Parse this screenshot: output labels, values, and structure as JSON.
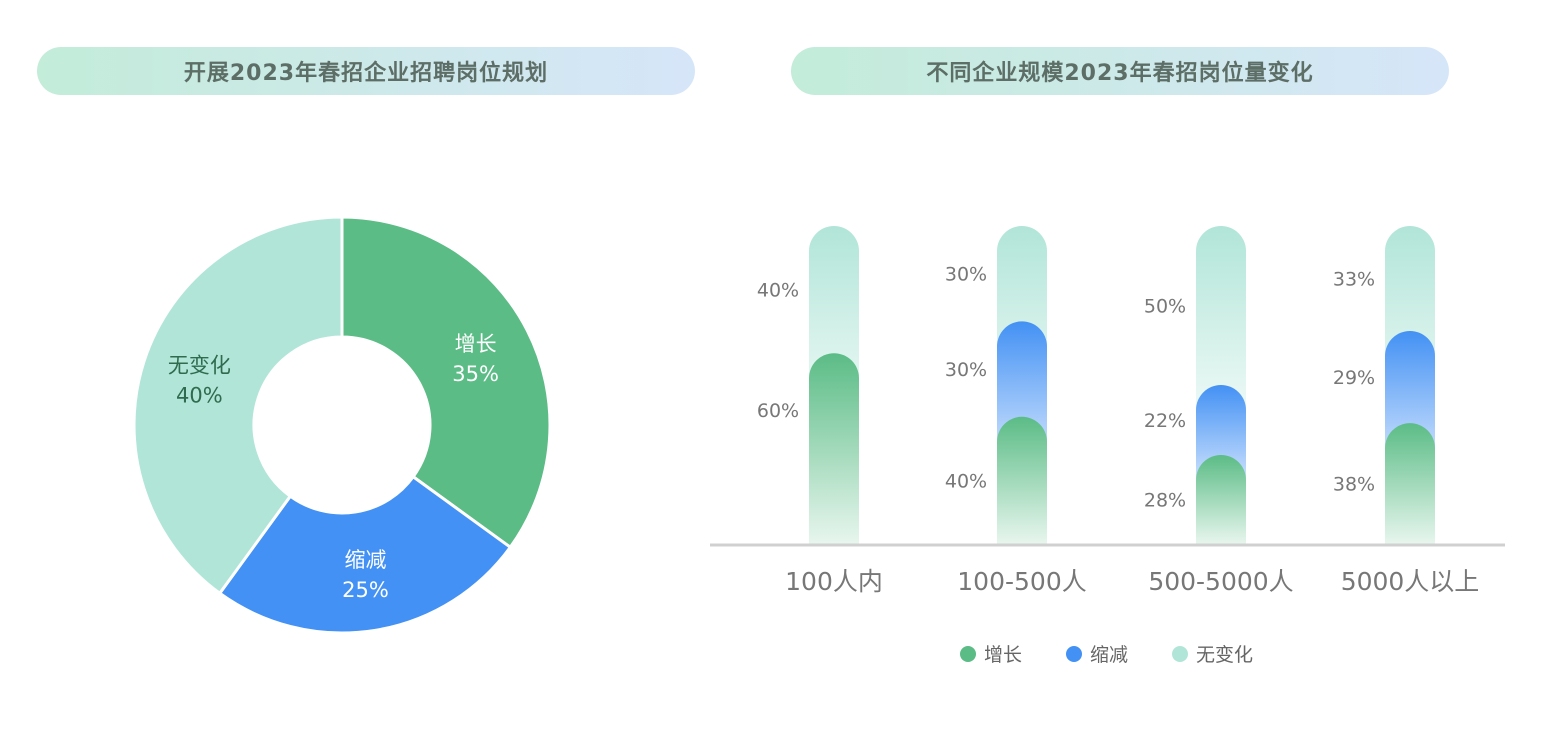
{
  "titles": {
    "left": "开展2023年春招企业招聘岗位规划",
    "right": "不同企业规模2023年春招岗位量变化"
  },
  "colors": {
    "increase": "#5bbc86",
    "decrease": "#4391f4",
    "unchanged": "#b1e5d8"
  },
  "chart_data": [
    {
      "type": "pie",
      "donut": true,
      "categories": [
        "增长",
        "缩减",
        "无变化"
      ],
      "values": [
        35,
        25,
        40
      ],
      "labels": [
        "35%",
        "25%",
        "40%"
      ]
    },
    {
      "type": "bar",
      "stacked": true,
      "categories": [
        "100人内",
        "100-500人",
        "500-5000人",
        "5000人以上"
      ],
      "series": [
        {
          "name": "增长",
          "values": [
            60,
            40,
            28,
            38
          ],
          "labels": [
            "60%",
            "40%",
            "28%",
            "38%"
          ]
        },
        {
          "name": "缩减",
          "values": [
            0,
            30,
            22,
            29
          ],
          "labels": [
            "",
            "30%",
            "22%",
            "29%"
          ]
        },
        {
          "name": "无变化",
          "values": [
            40,
            30,
            50,
            33
          ],
          "labels": [
            "40%",
            "30%",
            "50%",
            "33%"
          ]
        }
      ],
      "ylim": [
        0,
        100
      ],
      "legend": "bottom"
    }
  ]
}
